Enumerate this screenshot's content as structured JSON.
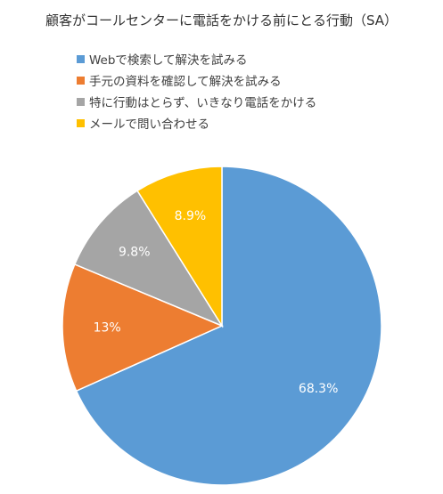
{
  "chart_data": {
    "type": "pie",
    "title": "顧客がコールセンターに電話をかける前にとる行動（SA）",
    "categories": [
      "Webで検索して解決を試みる",
      "手元の資料を確認して解決を試みる",
      "特に行動はとらず、いきなり電話をかける",
      "メールで問い合わせる"
    ],
    "values": [
      68.3,
      13,
      9.8,
      8.9
    ],
    "data_labels": [
      "68.3%",
      "13%",
      "9.8%",
      "8.9%"
    ],
    "colors": [
      "#5B9BD5",
      "#ED7D31",
      "#A5A5A5",
      "#FFC000"
    ],
    "legend_position": "top",
    "start_angle": "12 o'clock",
    "direction": "clockwise"
  }
}
